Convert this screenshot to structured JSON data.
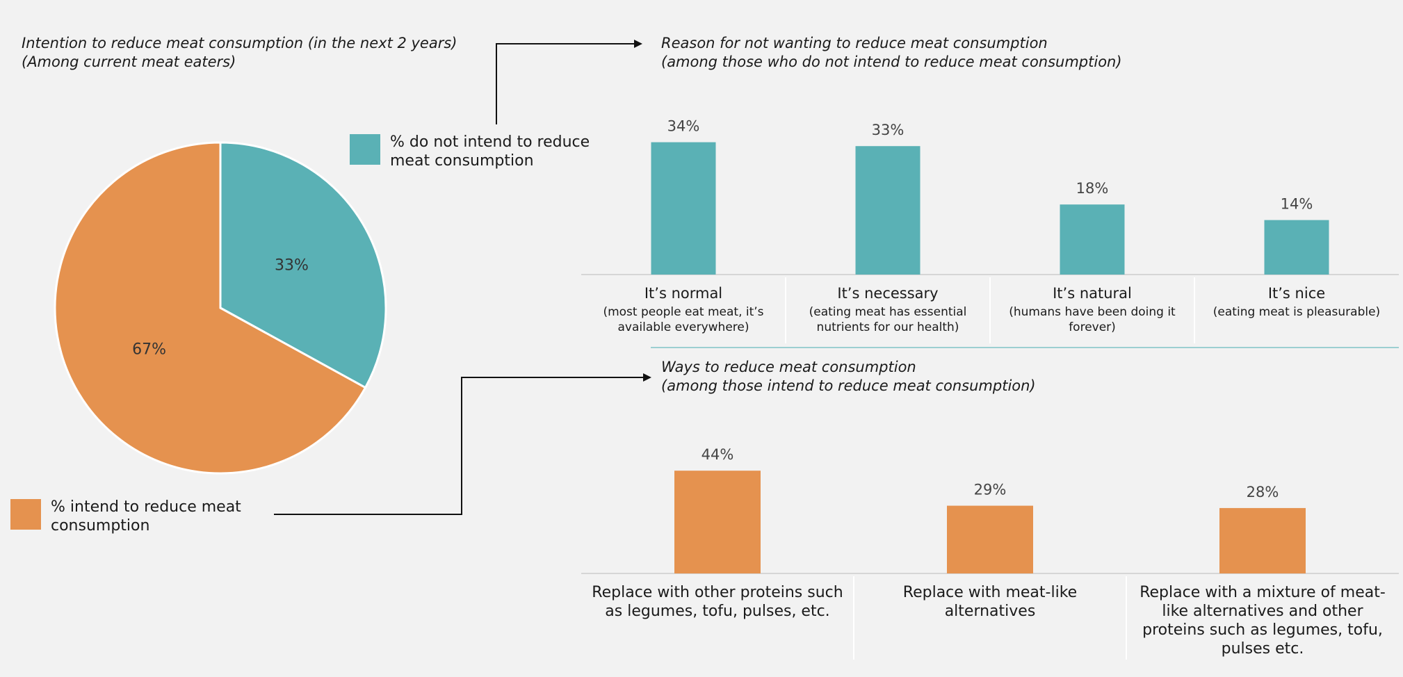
{
  "chart_data": [
    {
      "type": "pie",
      "title": "Intention to reduce meat consumption (in the next 2 years)",
      "subtitle": "(Among current meat eaters)",
      "series": [
        {
          "name": "% do not intend to reduce meat consumption",
          "color": "#5ab1b5",
          "values": [
            33
          ],
          "value_labels": [
            "33%"
          ]
        },
        {
          "name": "% intend to reduce meat consumption",
          "color": "#e5924f",
          "values": [
            67
          ],
          "value_labels": [
            "67%"
          ]
        }
      ]
    },
    {
      "type": "bar",
      "title": "Reason for not wanting to reduce meat consumption",
      "subtitle": "(among those who do not intend to reduce meat consumption)",
      "categories": [
        "It’s normal",
        "It’s necessary",
        "It’s natural",
        "It’s nice"
      ],
      "category_notes": [
        "(most people eat meat, it’s available everywhere)",
        "(eating meat has essential nutrients for our health)",
        "(humans have been doing it forever)",
        "(eating meat is pleasurable)"
      ],
      "values": [
        34,
        33,
        18,
        14
      ],
      "value_labels": [
        "34%",
        "33%",
        "18%",
        "14%"
      ],
      "color": "#5ab1b5"
    },
    {
      "type": "bar",
      "title": "Ways to reduce meat consumption",
      "subtitle": "(among those intend to reduce meat consumption)",
      "categories": [
        "Replace with other proteins such as legumes, tofu, pulses, etc.",
        "Replace with meat-like alternatives",
        "Replace with a mixture of meat-like alternatives and other proteins such as legumes, tofu, pulses etc."
      ],
      "values": [
        44,
        29,
        28
      ],
      "value_labels": [
        "44%",
        "29%",
        "28%"
      ],
      "color": "#e5924f"
    }
  ]
}
